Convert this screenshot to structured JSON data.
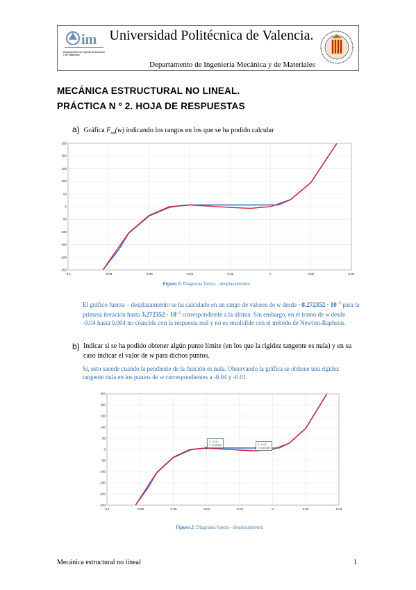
{
  "header": {
    "university": "Universidad Politécnica de Valencia.",
    "department": "Departamento de Ingeniería Mecánica y de Materiales",
    "logo_caption": "Departamento de Ingeniería Mecánica y de Materiales"
  },
  "title_line1": "MECÁNICA ESTRUCTURAL NO LINEAL.",
  "title_line2": "PRÁCTICA N º 2. HOJA DE RESPUESTAS",
  "question_a": {
    "label": "a)",
    "text_prefix": "Gráfica ",
    "text_fn": "F",
    "text_sub": "int",
    "text_arg": "(w)",
    "text_suffix": " indicando los rangos en los que se ha podido calcular"
  },
  "figure1": {
    "caption_label": "Figura 1:",
    "caption_text": " Diagrama fuerza - desplazamiento"
  },
  "answer_a": {
    "p1": "El gráfico fuerza – desplazamiento se ha calculado en un rango de valores de ",
    "w": "w",
    "p2": " desde ",
    "val1": "−8.272352 · 10",
    "exp1": "−2",
    "p3": " para la primera iteración hasta ",
    "val2": "3.272352 · 10",
    "exp2": "−2",
    "p4": " correspondiente a la última. Sin embargo, en el tramo de ",
    "p5": " desde -0.04 hasta 0.004 no coincide con la respuesta real y no es resolvible con el método de Newton-Raphson."
  },
  "question_b": {
    "label": "b)",
    "text1": "Indicar si se ha podido obtener algún punto límite (en los que la rigidez tangente es nula) y en su caso indicar el valor de ",
    "w": "w",
    "text2": " para dichos puntos."
  },
  "answer_b": {
    "p1": "Sí, esto sucede cuando la pendiente de la función es nula. Observando la gráfica se obtiene una rigidez tangente nula en los puntos de ",
    "w": "w",
    "p2": " correspondientes a -0.04 y -0.01."
  },
  "figure2": {
    "caption_label": "Figura 2:",
    "caption_text": " Diagrama fuerza - desplazamiento",
    "datatip1": {
      "x": "X -0.04",
      "y": "Y 6.65962"
    },
    "datatip2": {
      "x": "X -0.01",
      "y": "Y 6.55359"
    }
  },
  "footer": {
    "text": "Mecánica estructural no lineal",
    "page": "1"
  },
  "chart_data": [
    {
      "type": "line",
      "xlim": [
        -0.1,
        0.04
      ],
      "ylim": [
        -250,
        250
      ],
      "x_ticks": [
        "-0.1",
        "-0.08",
        "-0.06",
        "-0.04",
        "-0.02",
        "0",
        "0.02",
        "0.04"
      ],
      "y_ticks": [
        "-250",
        "-200",
        "-150",
        "-100",
        "-50",
        "0",
        "50",
        "100",
        "150",
        "200",
        "250"
      ],
      "grid": true,
      "series": [
        {
          "color": "#2a7bd4",
          "x": [
            -0.0827,
            -0.075,
            -0.07,
            -0.06,
            -0.05,
            -0.045,
            -0.04,
            -0.03,
            -0.02,
            -0.01,
            0.0,
            0.004,
            0.01,
            0.02,
            0.0327
          ],
          "y": [
            -249,
            -170,
            -105,
            -37,
            -3,
            3,
            6.66,
            6.6,
            6.6,
            6.6,
            6.6,
            6.6,
            28,
            95,
            249
          ]
        },
        {
          "color": "#e02030",
          "x": [
            -0.0827,
            -0.07,
            -0.06,
            -0.05,
            -0.04,
            -0.03,
            -0.02,
            -0.01,
            0.0,
            0.01,
            0.02,
            0.0327
          ],
          "y": [
            -249,
            -103,
            -35,
            0,
            6.66,
            1.9,
            -3.2,
            -6.5,
            0,
            28,
            95,
            249
          ]
        }
      ]
    },
    {
      "type": "line",
      "xlim": [
        -0.1,
        0.04
      ],
      "ylim": [
        -250,
        250
      ],
      "x_ticks": [
        "-0.1",
        "-0.08",
        "-0.06",
        "-0.04",
        "-0.02",
        "0",
        "0.02",
        "0.04"
      ],
      "y_ticks": [
        "-250",
        "-200",
        "-150",
        "-100",
        "-50",
        "0",
        "50",
        "100",
        "150",
        "200",
        "250"
      ],
      "grid": true,
      "series": [
        {
          "color": "#2a7bd4",
          "x": [
            -0.0827,
            -0.075,
            -0.07,
            -0.06,
            -0.05,
            -0.045,
            -0.04,
            -0.03,
            -0.02,
            -0.01,
            0.0,
            0.004,
            0.01,
            0.02,
            0.0327
          ],
          "y": [
            -249,
            -170,
            -105,
            -37,
            -3,
            3,
            6.66,
            6.6,
            6.6,
            6.6,
            6.6,
            6.6,
            28,
            95,
            249
          ]
        },
        {
          "color": "#e02030",
          "x": [
            -0.0827,
            -0.07,
            -0.06,
            -0.05,
            -0.04,
            -0.03,
            -0.02,
            -0.01,
            0.0,
            0.01,
            0.02,
            0.0327
          ],
          "y": [
            -249,
            -103,
            -35,
            0,
            6.66,
            1.9,
            -3.2,
            -6.5,
            0,
            28,
            95,
            249
          ]
        }
      ]
    }
  ]
}
